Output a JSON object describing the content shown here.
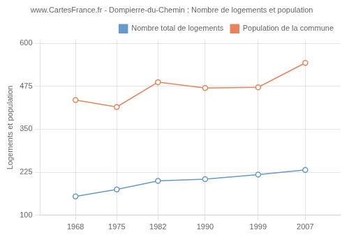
{
  "chart_data": {
    "type": "line",
    "title": "www.CartesFrance.fr - Dompierre-du-Chemin : Nombre de logements et population",
    "ylabel": "Logements et population",
    "x": [
      1968,
      1975,
      1982,
      1990,
      1999,
      2007
    ],
    "series": [
      {
        "name": "Population de la commune",
        "color": "#e8825a",
        "marker": "circle",
        "values": [
          435,
          415,
          487,
          470,
          472,
          543
        ]
      },
      {
        "name": "Nombre total de logements",
        "color": "#6699cc",
        "marker": "circle",
        "values": [
          155,
          175,
          200,
          205,
          218,
          232
        ]
      }
    ],
    "xlim": [
      1962,
      2013
    ],
    "xticks": [
      1968,
      1975,
      1982,
      1990,
      1999,
      2007
    ],
    "ylim": [
      100,
      610
    ],
    "yticks": [
      100,
      225,
      350,
      475,
      600
    ],
    "grid": true,
    "legend": "upper right"
  }
}
